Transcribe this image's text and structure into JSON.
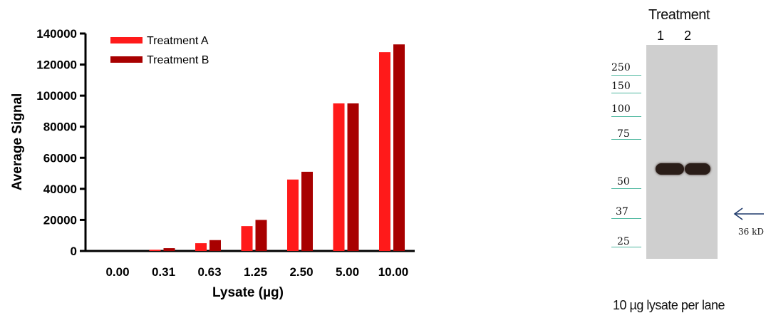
{
  "chart_data": {
    "type": "bar",
    "xlabel": "Lysate (µg)",
    "ylabel": "Average Signal",
    "categories": [
      "0.00",
      "0.31",
      "0.63",
      "1.25",
      "2.50",
      "5.00",
      "10.00"
    ],
    "ylim": [
      0,
      140000
    ],
    "yticks": [
      0,
      20000,
      40000,
      60000,
      80000,
      100000,
      120000,
      140000
    ],
    "legend_position": "top-left",
    "series": [
      {
        "name": "Treatment A",
        "color": "#ff1a1a",
        "values": [
          0,
          800,
          5000,
          16000,
          46000,
          95000,
          128000
        ]
      },
      {
        "name": "Treatment B",
        "color": "#a80000",
        "values": [
          0,
          1800,
          7000,
          20000,
          51000,
          95000,
          133000
        ]
      }
    ]
  },
  "blot": {
    "title": "Treatment",
    "lanes": [
      "1",
      "2"
    ],
    "markers": [
      "250",
      "150",
      "100",
      "75",
      "50",
      "37",
      "25"
    ],
    "band_label": "36 kD",
    "caption": "10 µg lysate per lane"
  }
}
